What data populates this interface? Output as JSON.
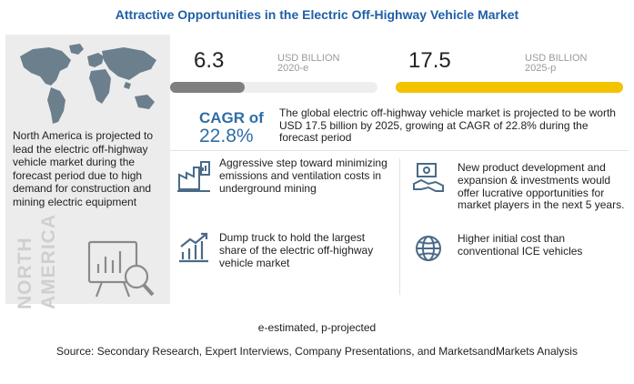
{
  "title": "Attractive Opportunities in the Electric Off-Highway Vehicle Market",
  "left_panel": {
    "text": "North America is projected to lead the electric off-highway vehicle market during the forecast period due to high demand for construction and mining electric equipment",
    "vertical_line1": "NORTH",
    "vertical_line2": "AMERICA"
  },
  "stats": {
    "value_2020": "6.3",
    "unit_2020_line1": "USD BILLION",
    "unit_2020_line2": "2020-e",
    "value_2025": "17.5",
    "unit_2025_line1": "USD BILLION",
    "unit_2025_line2": "2025-p",
    "bar_2020_fraction": 0.36,
    "bar_2025_fraction": 1.0,
    "bar_2020_color": "#7f7f7f",
    "bar_2025_color": "#f3c300"
  },
  "cagr": {
    "label": "CAGR of",
    "value": "22.8%",
    "description": "The global electric off-highway vehicle market is projected to be worth USD  17.5 billion by 2025, growing at CAGR of 22.8% during the forecast period"
  },
  "items": [
    {
      "icon": "factory-chart-icon",
      "text": "Aggressive step toward minimizing emissions and ventilation costs in underground mining"
    },
    {
      "icon": "money-handshake-icon",
      "text": "New product development and expansion & investments would offer lucrative opportunities for market players in the next 5 years."
    },
    {
      "icon": "bar-chart-growth-icon",
      "text": "Dump truck to hold the largest share of the electric off-highway vehicle market"
    },
    {
      "icon": "globe-icon",
      "text": "Higher initial cost than conventional ICE vehicles"
    }
  ],
  "footer": {
    "legend": "e-estimated, p-projected",
    "source": "Source: Secondary Research, Expert Interviews, Company Presentations, and MarketsandMarkets Analysis"
  }
}
